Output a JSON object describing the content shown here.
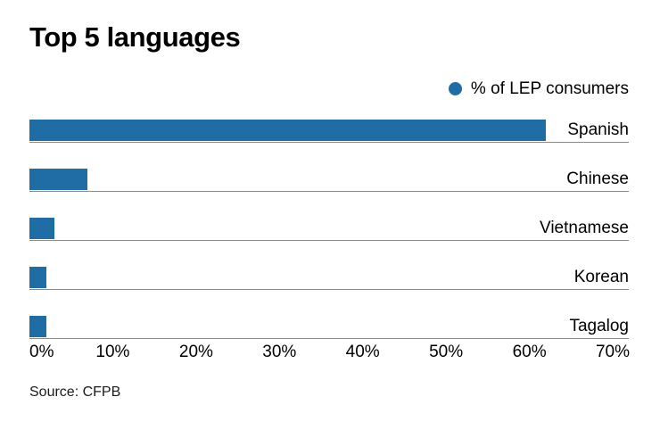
{
  "title": "Top 5 languages",
  "legend": {
    "marker": "circle",
    "label": "% of LEP consumers"
  },
  "chart_data": {
    "type": "bar",
    "orientation": "horizontal",
    "title": "Top 5 languages",
    "series_name": "% of LEP consumers",
    "categories": [
      "Spanish",
      "Chinese",
      "Vietnamese",
      "Korean",
      "Tagalog"
    ],
    "values": [
      62,
      7,
      3,
      2,
      2
    ],
    "value_unit": "%",
    "xlim": [
      0,
      70
    ],
    "x_ticks": [
      "0%",
      "10%",
      "20%",
      "30%",
      "40%",
      "50%",
      "60%",
      "70%"
    ],
    "legend_position": "top-right",
    "grid": "row-baselines-only",
    "category_labels_position": "right-aligned-above-baseline"
  },
  "source": "Source: CFPB",
  "colors": {
    "bar": "#1f6da4",
    "baseline": "#8a8a8a",
    "text": "#000000",
    "background": "#ffffff"
  }
}
